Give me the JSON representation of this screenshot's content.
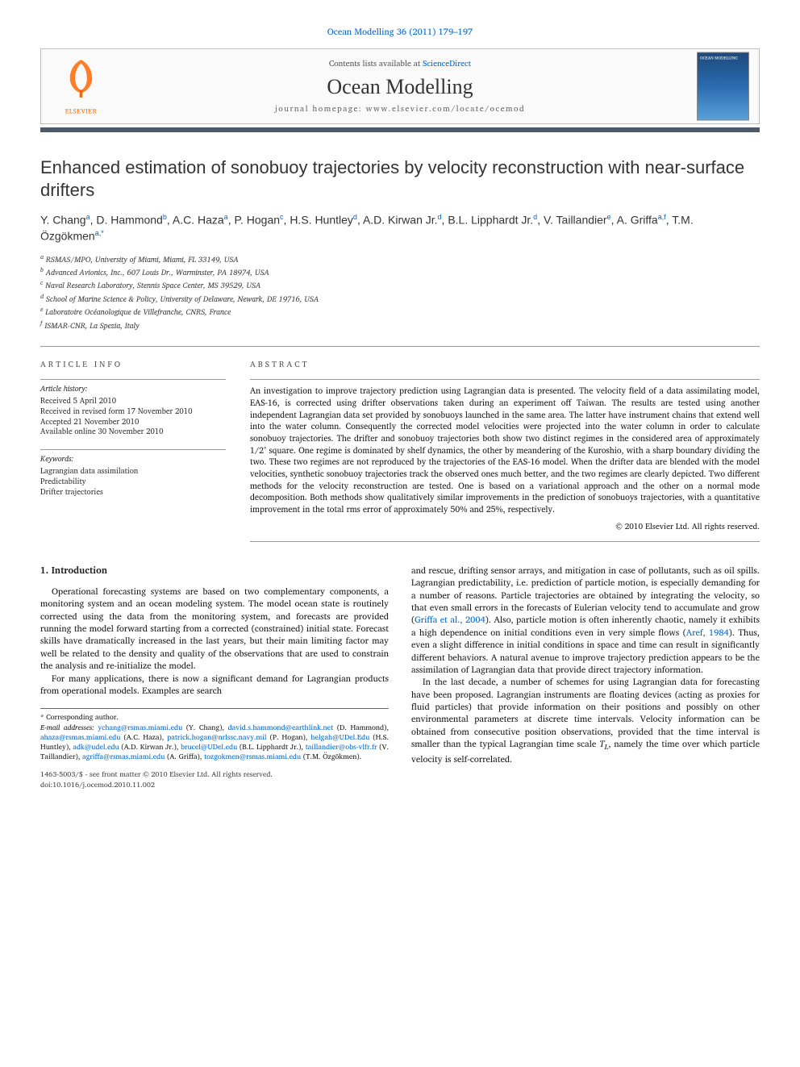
{
  "citation": "Ocean Modelling 36 (2011) 179–197",
  "header": {
    "contents_available": "Contents lists available at ",
    "sciencedirect": "ScienceDirect",
    "journal_title": "Ocean Modelling",
    "homepage_label": "journal homepage: ",
    "homepage_url": "www.elsevier.com/locate/ocemod",
    "publisher": "ELSEVIER",
    "cover_label": "OCEAN MODELLING"
  },
  "title": "Enhanced estimation of sonobuoy trajectories by velocity reconstruction with near-surface drifters",
  "authors_html": "Y. Chang<sup>a</sup>, D. Hammond<sup>b</sup>, A.C. Haza<sup>a</sup>, P. Hogan<sup>c</sup>, H.S. Huntley<sup>d</sup>, A.D. Kirwan Jr.<sup>d</sup>, B.L. Lipphardt Jr.<sup>d</sup>, V. Taillandier<sup>e</sup>, A. Griffa<sup>a,f</sup>, T.M. Özgökmen<sup>a,*</sup>",
  "affiliations": [
    "a RSMAS/MPO, University of Miami, Miami, FL 33149, USA",
    "b Advanced Avionics, Inc., 607 Louis Dr., Warminster, PA 18974, USA",
    "c Naval Research Laboratory, Stennis Space Center, MS 39529, USA",
    "d School of Marine Science & Policy, University of Delaware, Newark, DE 19716, USA",
    "e Laboratoire Océanologique de Villefranche, CNRS, France",
    "f ISMAR-CNR, La Spezia, Italy"
  ],
  "article_info": {
    "label": "ARTICLE INFO",
    "history_heading": "Article history:",
    "history": [
      "Received 5 April 2010",
      "Received in revised form 17 November 2010",
      "Accepted 21 November 2010",
      "Available online 30 November 2010"
    ],
    "keywords_heading": "Keywords:",
    "keywords": [
      "Lagrangian data assimilation",
      "Predictability",
      "Drifter trajectories"
    ]
  },
  "abstract": {
    "label": "ABSTRACT",
    "text": "An investigation to improve trajectory prediction using Lagrangian data is presented. The velocity field of a data assimilating model, EAS-16, is corrected using drifter observations taken during an experiment off Taiwan. The results are tested using another independent Lagrangian data set provided by sonobuoys launched in the same area. The latter have instrument chains that extend well into the water column. Consequently the corrected model velocities were projected into the water column in order to calculate sonobuoy trajectories. The drifter and sonobuoy trajectories both show two distinct regimes in the considered area of approximately 1/2° square. One regime is dominated by shelf dynamics, the other by meandering of the Kuroshio, with a sharp boundary dividing the two. These two regimes are not reproduced by the trajectories of the EAS-16 model. When the drifter data are blended with the model velocities, synthetic sonobuoy trajectories track the observed ones much better, and the two regimes are clearly depicted. Two different methods for the velocity reconstruction are tested. One is based on a variational approach and the other on a normal mode decomposition. Both methods show qualitatively similar improvements in the prediction of sonobuoys trajectories, with a quantitative improvement in the total rms error of approximately 50% and 25%, respectively.",
    "copyright": "© 2010 Elsevier Ltd. All rights reserved."
  },
  "body": {
    "section_heading": "1. Introduction",
    "col1_p1": "Operational forecasting systems are based on two complementary components, a monitoring system and an ocean modeling system. The model ocean state is routinely corrected using the data from the monitoring system, and forecasts are provided running the model forward starting from a corrected (constrained) initial state. Forecast skills have dramatically increased in the last years, but their main limiting factor may well be related to the density and quality of the observations that are used to constrain the analysis and re-initialize the model.",
    "col1_p2": "For many applications, there is now a significant demand for Lagrangian products from operational models. Examples are search",
    "col2_p1_a": "and rescue, drifting sensor arrays, and mitigation in case of pollutants, such as oil spills. Lagrangian predictability, i.e. prediction of particle motion, is especially demanding for a number of reasons. Particle trajectories are obtained by integrating the velocity, so that even small errors in the forecasts of Eulerian velocity tend to accumulate and grow (",
    "col2_ref1": "Griffa et al., 2004",
    "col2_p1_b": "). Also, particle motion is often inherently chaotic, namely it exhibits a high dependence on initial conditions even in very simple flows (",
    "col2_ref2": "Aref, 1984",
    "col2_p1_c": "). Thus, even a slight difference in initial conditions in space and time can result in significantly different behaviors. A natural avenue to improve trajectory prediction appears to be the assimilation of Lagrangian data that provide direct trajectory information.",
    "col2_p2_a": "In the last decade, a number of schemes for using Lagrangian data for forecasting have been proposed. Lagrangian instruments are floating devices (acting as proxies for fluid particles) that provide information on their positions and possibly on other environmental parameters at discrete time intervals. Velocity information can be obtained from consecutive position observations, provided that the time interval is smaller than the typical Lagrangian time scale ",
    "col2_TL": "T_L",
    "col2_p2_b": ", namely the time over which particle velocity is self-correlated."
  },
  "footnotes": {
    "corr": "* Corresponding author.",
    "email_label": "E-mail addresses: ",
    "emails_html": "<a href='#'>ychang@rsmas.miami.edu</a> (Y. Chang), <a href='#'>david.s.hammond@earthlink.net</a> (D. Hammond), <a href='#'>ahaza@rsmas.miami.edu</a> (A.C. Haza), <a href='#'>patrick.hogan@nrlssc.navy.mil</a> (P. Hogan), <a href='#'>helgah@UDel.Edu</a> (H.S. Huntley), <a href='#'>adk@udel.edu</a> (A.D. Kirwan Jr.), <a href='#'>brucel@UDel.edu</a> (B.L. Lipphardt Jr.), <a href='#'>taillandier@obs-vlfr.fr</a> (V. Taillandier), <a href='#'>agriffa@rsmas.miami.edu</a> (A. Griffa), <a href='#'>tozgokmen@rsmas.miami.edu</a> (T.M. Özgökmen)."
  },
  "footer": {
    "left": "1463-5003/$ - see front matter © 2010 Elsevier Ltd. All rights reserved.",
    "doi": "doi:10.1016/j.ocemod.2010.11.002"
  },
  "colors": {
    "link": "#0066cc",
    "orange": "#ff6600",
    "bar": "#4a5a6a",
    "border": "#999999"
  }
}
